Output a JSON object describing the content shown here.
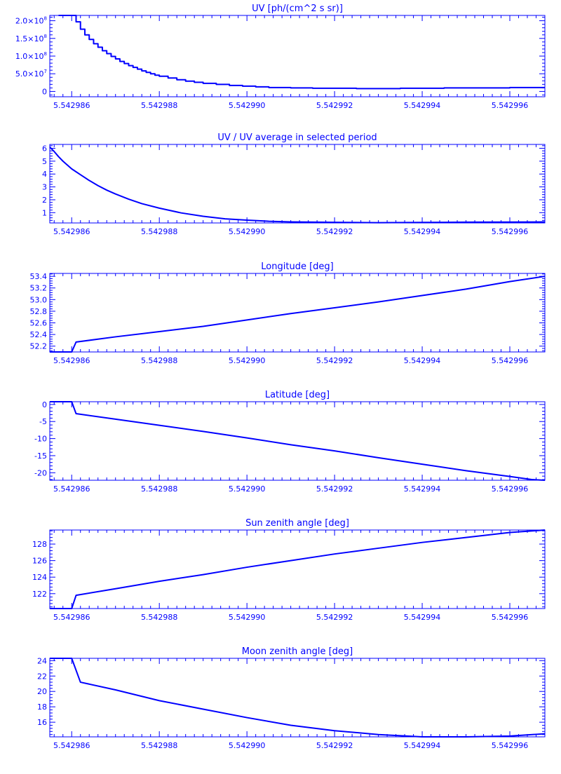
{
  "line_color": "#0000ff",
  "background_color": "#ffffff",
  "chart_data": [
    {
      "type": "line",
      "title": "UV [ph/(cm^2 s sr)]",
      "xlabel": "",
      "ylabel": "",
      "xlim": [
        5.5429855,
        5.5429968
      ],
      "ylim": [
        -15000000.0,
        215000000.0
      ],
      "y_ticks": [
        0,
        50000000.0,
        100000000.0,
        150000000.0,
        200000000.0
      ],
      "y_tick_labels": [
        "0",
        "5.0×10^7",
        "1.0×10^8",
        "1.5×10^8",
        "2.0×10^8"
      ],
      "x_ticks": [
        5.542986,
        5.542988,
        5.54299,
        5.542992,
        5.542994,
        5.542996
      ],
      "x_tick_labels": [
        "5.542986",
        "5.542988",
        "5.542990",
        "5.542992",
        "5.542994",
        "5.542996"
      ],
      "step": true,
      "series": [
        {
          "x": [
            5.5429857,
            5.542986,
            5.5429861,
            5.5429862,
            5.5429863,
            5.5429864,
            5.5429865,
            5.5429866,
            5.5429867,
            5.5429868,
            5.5429869,
            5.542987,
            5.5429871,
            5.5429872,
            5.5429873,
            5.5429874,
            5.5429875,
            5.5429876,
            5.5429877,
            5.5429878,
            5.5429879,
            5.542988,
            5.5429882,
            5.5429884,
            5.5429886,
            5.5429888,
            5.542989,
            5.5429893,
            5.5429896,
            5.5429899,
            5.5429902,
            5.5429905,
            5.542991,
            5.5429915,
            5.542992,
            5.5429925,
            5.542993,
            5.5429935,
            5.542994,
            5.5429945,
            5.542995,
            5.5429955,
            5.542996,
            5.5429965,
            5.5429968
          ],
          "y": [
            215000000.0,
            215000000.0,
            197000000.0,
            176000000.0,
            160000000.0,
            147000000.0,
            135000000.0,
            125000000.0,
            115000000.0,
            107000000.0,
            99000000.0,
            92000000.0,
            85000000.0,
            79000000.0,
            73000000.0,
            68000000.0,
            63000000.0,
            58000000.0,
            54000000.0,
            50000000.0,
            46000000.0,
            43000000.0,
            38000000.0,
            33000000.0,
            29000000.0,
            26000000.0,
            23000000.0,
            20000000.0,
            17000000.0,
            15000000.0,
            13000000.0,
            11000000.0,
            10000000.0,
            9000000.0,
            9000000.0,
            8000000.0,
            8000000.0,
            9000000.0,
            9000000.0,
            10000000.0,
            10000000.0,
            10000000.0,
            11000000.0,
            11000000.0,
            11000000.0
          ]
        }
      ]
    },
    {
      "type": "line",
      "title": "UV / UV average in selected period",
      "xlabel": "",
      "ylabel": "",
      "xlim": [
        5.5429855,
        5.5429968
      ],
      "ylim": [
        0.2,
        6.3
      ],
      "y_ticks": [
        1,
        2,
        3,
        4,
        5,
        6
      ],
      "y_tick_labels": [
        "1",
        "2",
        "3",
        "4",
        "5",
        "6"
      ],
      "x_ticks": [
        5.542986,
        5.542988,
        5.54299,
        5.542992,
        5.542994,
        5.542996
      ],
      "x_tick_labels": [
        "5.542986",
        "5.542988",
        "5.542990",
        "5.542992",
        "5.542994",
        "5.542996"
      ],
      "step": false,
      "series": [
        {
          "x": [
            5.5429855,
            5.5429856,
            5.5429857,
            5.5429858,
            5.5429859,
            5.542986,
            5.5429862,
            5.5429864,
            5.5429866,
            5.5429868,
            5.542987,
            5.5429873,
            5.5429876,
            5.542988,
            5.5429885,
            5.542989,
            5.5429895,
            5.54299,
            5.5429905,
            5.542991,
            5.542992,
            5.542993,
            5.542994,
            5.542995,
            5.542996,
            5.5429968
          ],
          "y": [
            6.1,
            5.75,
            5.35,
            5.0,
            4.7,
            4.4,
            3.95,
            3.5,
            3.1,
            2.75,
            2.45,
            2.05,
            1.7,
            1.35,
            0.98,
            0.72,
            0.52,
            0.42,
            0.33,
            0.28,
            0.25,
            0.22,
            0.24,
            0.26,
            0.27,
            0.28
          ]
        }
      ]
    },
    {
      "type": "line",
      "title": "Longitude [deg]",
      "xlabel": "",
      "ylabel": "",
      "xlim": [
        5.5429855,
        5.5429968
      ],
      "ylim": [
        52.1,
        53.45
      ],
      "y_ticks": [
        52.2,
        52.4,
        52.6,
        52.8,
        53.0,
        53.2,
        53.4
      ],
      "y_tick_labels": [
        "52.2",
        "52.4",
        "52.6",
        "52.8",
        "53.0",
        "53.2",
        "53.4"
      ],
      "x_ticks": [
        5.542986,
        5.542988,
        5.54299,
        5.542992,
        5.542994,
        5.542996
      ],
      "x_tick_labels": [
        "5.542986",
        "5.542988",
        "5.542990",
        "5.542992",
        "5.542994",
        "5.542996"
      ],
      "step": false,
      "series": [
        {
          "x": [
            5.5429855,
            5.542986,
            5.5429861,
            5.542987,
            5.542988,
            5.542989,
            5.54299,
            5.542991,
            5.542992,
            5.542993,
            5.542994,
            5.542995,
            5.542996,
            5.5429968
          ],
          "y": [
            52.1,
            52.1,
            52.27,
            52.36,
            52.45,
            52.54,
            52.65,
            52.76,
            52.86,
            52.96,
            53.07,
            53.18,
            53.31,
            53.4
          ]
        }
      ]
    },
    {
      "type": "line",
      "title": "Latitude [deg]",
      "xlabel": "",
      "ylabel": "",
      "xlim": [
        5.5429855,
        5.5429968
      ],
      "ylim": [
        -22.2,
        0.8
      ],
      "y_ticks": [
        -20,
        -15,
        -10,
        -5,
        0
      ],
      "y_tick_labels": [
        "-20",
        "-15",
        "-10",
        "-5",
        "0"
      ],
      "x_ticks": [
        5.542986,
        5.542988,
        5.54299,
        5.542992,
        5.542994,
        5.542996
      ],
      "x_tick_labels": [
        "5.542986",
        "5.542988",
        "5.542990",
        "5.542992",
        "5.542994",
        "5.542996"
      ],
      "step": false,
      "series": [
        {
          "x": [
            5.5429855,
            5.542986,
            5.5429861,
            5.542987,
            5.542988,
            5.542989,
            5.54299,
            5.542991,
            5.542992,
            5.542993,
            5.542994,
            5.542995,
            5.542996,
            5.5429965,
            5.5429968
          ],
          "y": [
            0.8,
            0.8,
            -2.7,
            -4.3,
            -6.1,
            -7.9,
            -9.8,
            -11.8,
            -13.6,
            -15.6,
            -17.5,
            -19.4,
            -21.1,
            -22.0,
            -22.2
          ]
        }
      ]
    },
    {
      "type": "line",
      "title": "Sun zenith angle [deg]",
      "xlabel": "",
      "ylabel": "",
      "xlim": [
        5.5429855,
        5.5429968
      ],
      "ylim": [
        120.2,
        129.7
      ],
      "y_ticks": [
        122,
        124,
        126,
        128
      ],
      "y_tick_labels": [
        "122",
        "124",
        "126",
        "128"
      ],
      "x_ticks": [
        5.542986,
        5.542988,
        5.54299,
        5.542992,
        5.542994,
        5.542996
      ],
      "x_tick_labels": [
        "5.542986",
        "5.542988",
        "5.542990",
        "5.542992",
        "5.542994",
        "5.542996"
      ],
      "step": false,
      "series": [
        {
          "x": [
            5.5429855,
            5.542986,
            5.5429861,
            5.542987,
            5.542988,
            5.542989,
            5.54299,
            5.542991,
            5.542992,
            5.542993,
            5.542994,
            5.542995,
            5.542996,
            5.5429968
          ],
          "y": [
            120.2,
            120.2,
            121.8,
            122.6,
            123.5,
            124.3,
            125.2,
            126.0,
            126.8,
            127.5,
            128.2,
            128.8,
            129.4,
            129.7
          ]
        }
      ]
    },
    {
      "type": "line",
      "title": "Moon zenith angle [deg]",
      "xlabel": "",
      "ylabel": "",
      "xlim": [
        5.5429855,
        5.5429968
      ],
      "ylim": [
        14.1,
        24.3
      ],
      "y_ticks": [
        16,
        18,
        20,
        22,
        24
      ],
      "y_tick_labels": [
        "16",
        "18",
        "20",
        "22",
        "24"
      ],
      "x_ticks": [
        5.542986,
        5.542988,
        5.54299,
        5.542992,
        5.542994,
        5.542996
      ],
      "x_tick_labels": [
        "5.542986",
        "5.542988",
        "5.542990",
        "5.542992",
        "5.542994",
        "5.542996"
      ],
      "step": false,
      "series": [
        {
          "x": [
            5.5429855,
            5.542986,
            5.5429862,
            5.542987,
            5.542988,
            5.542989,
            5.54299,
            5.542991,
            5.542992,
            5.542993,
            5.542994,
            5.542995,
            5.542996,
            5.5429968
          ],
          "y": [
            24.3,
            24.3,
            21.2,
            20.2,
            18.8,
            17.7,
            16.6,
            15.6,
            14.9,
            14.4,
            14.1,
            14.1,
            14.2,
            14.5
          ]
        }
      ]
    }
  ]
}
